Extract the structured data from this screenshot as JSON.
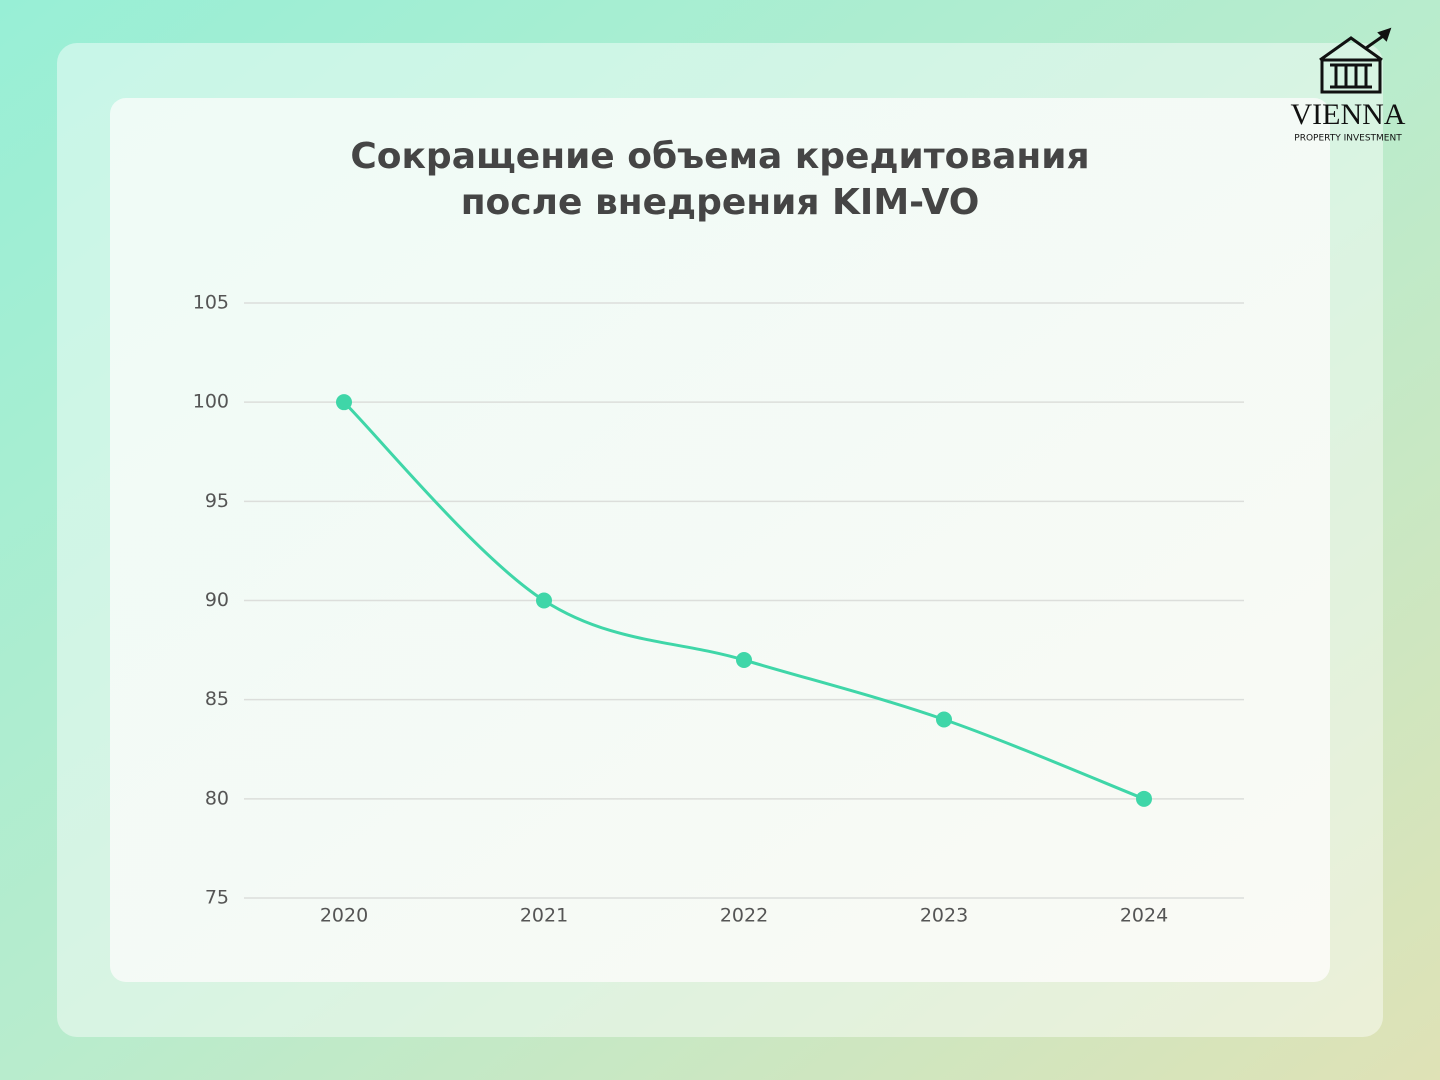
{
  "logo": {
    "name": "VIENNA",
    "tagline": "PROPERTY INVESTMENT"
  },
  "chart_data": {
    "type": "line",
    "title": [
      "Сокращение объема кредитования",
      "после внедрения KIM-VO"
    ],
    "categories": [
      "2020",
      "2021",
      "2022",
      "2023",
      "2024"
    ],
    "values": [
      100,
      90,
      87,
      84,
      80
    ],
    "color": "#3fd6a8",
    "ylim": [
      75,
      105
    ],
    "yticks": [
      75,
      80,
      85,
      90,
      95,
      100,
      105
    ],
    "grid": true,
    "smooth": true
  }
}
